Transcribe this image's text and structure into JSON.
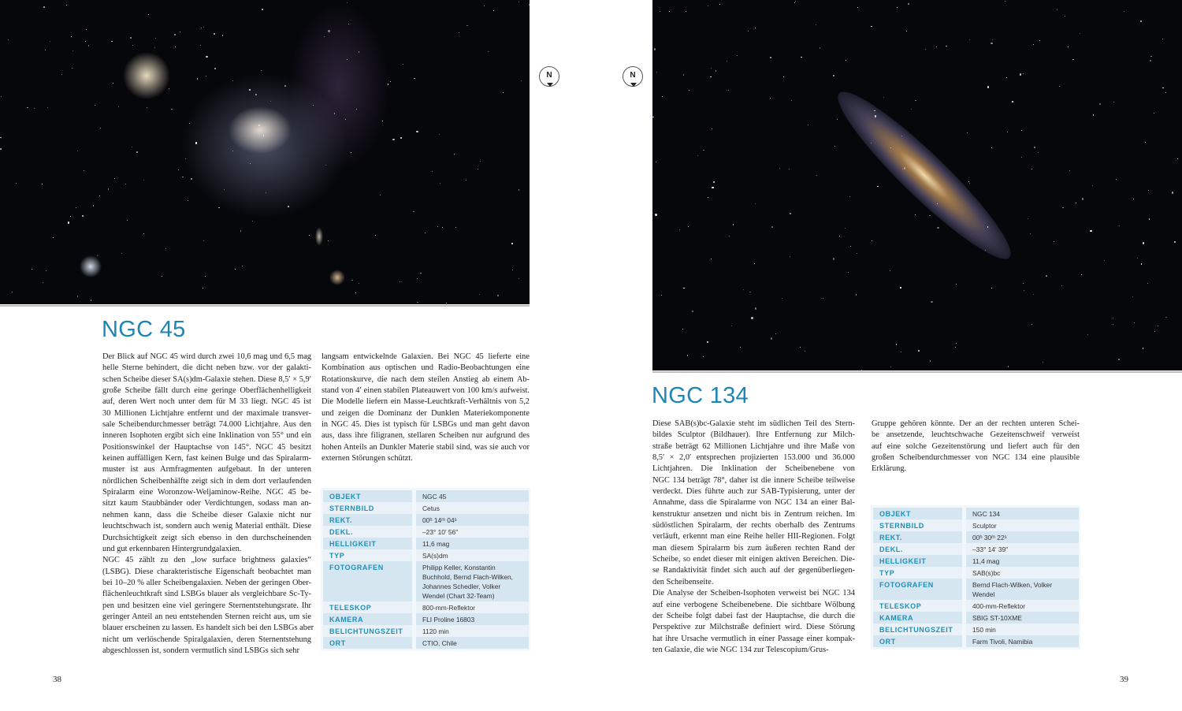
{
  "left_page": {
    "title": "NGC 45",
    "page_number": "38",
    "compass_label": "N",
    "column1": [
      [
        "Der Blick auf NGC 45 wird durch zwei 10,6 mag und 6,5 mag",
        "helle Sterne behindert, die dicht neben bzw. vor der galakti-",
        "schen Scheibe dieser SA(s)dm-Galaxie stehen. Diese 8,5′ × 5,9′",
        "große Scheibe fällt durch eine geringe Oberflächenhelligkeit",
        "auf, deren Wert noch unter dem für M 33 liegt. NGC 45 ist",
        "30 Millionen Lichtjahre entfernt und der maximale transver-",
        "sale Scheibendurchmesser beträgt 74.000 Lichtjahre. Aus den",
        "inneren Isophoten ergibt sich eine Inklination von 55° und ein",
        "Positionswinkel der Hauptachse von 145°. NGC 45 besitzt",
        "keinen auffälligen Kern, fast keinen Bulge und das Spiralarm-",
        "muster ist aus Armfragmenten aufgebaut. In der unteren",
        "nördlichen Scheibenhälfte zeigt sich in dem dort verlaufenden",
        "Spiralarm eine Woronzow-Weljaminow-Reihe. NGC 45 be-",
        "sitzt kaum Staubbänder oder Verdichtungen, sodass man an-",
        "nehmen kann, dass die Scheibe dieser Galaxie nicht nur",
        "leuchtschwach ist, sondern auch wenig Material enthält. Diese",
        "Durchsichtigkeit zeigt sich ebenso in den durchscheinenden",
        "und gut erkennbaren Hintergrundgalaxien."
      ],
      [
        "NGC 45 zählt zu den „low surface brightness galaxies“",
        "(LSBG). Diese charakteristische Eigenschaft beobachtet man",
        "bei 10–20 % aller Scheibengalaxien. Neben der geringen Ober-",
        "flächenleuchtkraft sind LSBGs blauer als vergleichbare Sc-Ty-",
        "pen und besitzen eine viel geringere Sternentstehungsrate. Ihr",
        "geringer Anteil an neu entstehenden Sternen reicht aus, um sie",
        "blauer erscheinen zu lassen. Es handelt sich bei den LSBGs aber",
        "nicht um verlöschende Spiralgalaxien, deren Sternentstehung",
        "abgeschlossen ist, sondern vermutlich sind LSBGs sich sehr"
      ]
    ],
    "column2": [
      [
        "langsam entwickelnde Galaxien. Bei NGC 45 lieferte eine",
        "Kombination aus optischen und Radio-Beobachtungen eine",
        "Rotationskurve, die nach dem steilen Anstieg ab einem Ab-",
        "stand von 4′ einen stabilen Plateauwert von 100 km/s aufweist.",
        "Die Modelle liefern ein Masse-Leuchtkraft-Verhältnis von 5,2",
        "und zeigen die Dominanz der Dunklen Materiekomponente",
        "in NGC 45. Dies ist typisch für LSBGs und man geht davon",
        "aus, dass ihre filigranen, stellaren Scheiben nur aufgrund des",
        "hohen Anteils an Dunkler Materie stabil sind, was sie auch vor",
        "externen Störungen schützt."
      ]
    ],
    "table": [
      {
        "label": "OBJEKT",
        "value": "NGC 45"
      },
      {
        "label": "STERNBILD",
        "value": "Cetus"
      },
      {
        "label": "REKT.",
        "value": "00ʰ 14ᵐ 04ˢ"
      },
      {
        "label": "DEKL.",
        "value": "–23° 10′ 56″"
      },
      {
        "label": "HELLIGKEIT",
        "value": "11,6 mag"
      },
      {
        "label": "TYP",
        "value": "SA(s)dm"
      },
      {
        "label": "FOTOGRAFEN",
        "value": "Philipp Keller, Konstantin Buchhold, Bernd Flach-Wilken, Johannes Schedler, Volker Wendel (Chart 32-Team)"
      },
      {
        "label": "TELESKOP",
        "value": "800-mm-Reflektor"
      },
      {
        "label": "KAMERA",
        "value": "FLI Proline 16803"
      },
      {
        "label": "BELICHTUNGSZEIT",
        "value": "1120 min"
      },
      {
        "label": "ORT",
        "value": "CTIO, Chile"
      }
    ]
  },
  "right_page": {
    "title": "NGC 134",
    "page_number": "39",
    "compass_label": "N",
    "column1": [
      [
        "Diese SAB(s)bc-Galaxie steht im südlichen Teil des Stern-",
        "bildes Sculptor (Bildhauer). Ihre Entfernung zur Milch-",
        "straße beträgt 62 Millionen Lichtjahre und ihre Maße von",
        "8,5′ × 2,0′ entsprechen projizierten 153.000 und 36.000",
        "Lichtjahren. Die Inklination der Scheibenebene von",
        "NGC 134 beträgt 78°, daher ist die innere Scheibe teilweise",
        "verdeckt. Dies führte auch zur SAB-Typisierung, unter der",
        "Annahme, dass die Spiralarme von NGC 134 an einer Bal-",
        "kenstruktur ansetzen und nicht bis in Zentrum reichen. Im",
        "südöstlichen Spiralarm, der rechts oberhalb des Zentrums",
        "verläuft, erkennt man eine Reihe heller HII-Regionen. Folgt",
        "man diesem Spiralarm bis zum äußeren rechten Rand der",
        "Scheibe, so endet dieser mit einigen aktiven Bereichen. Die-",
        "se Randaktivität findet sich auch auf der gegenüberliegen-",
        "den Scheibenseite."
      ],
      [
        "Die Analyse der Scheiben-Isophoten verweist bei NGC 134",
        "auf eine verbogene Scheibenebene. Die sichtbare Wölbung",
        "der Scheibe folgt dabei fast der Hauptachse, die durch die",
        "Perspektive zur Milchstraße definiert wird. Diese Störung",
        "hat ihre Ursache vermutlich in einer Passage einer kompak-",
        "ten Galaxie, die wie NGC 134 zur Telescopium/Grus-"
      ]
    ],
    "column2": [
      [
        "Gruppe gehören könnte. Der an der rechten unteren Schei-",
        "be ansetzende, leuchtschwache Gezeitenschweif verweist",
        "auf eine solche Gezeitenstörung und liefert auch für den",
        "großen Scheibendurchmesser von NGC 134 eine plausible",
        "Erklärung."
      ]
    ],
    "table": [
      {
        "label": "OBJEKT",
        "value": "NGC 134"
      },
      {
        "label": "STERNBILD",
        "value": "Sculptor"
      },
      {
        "label": "REKT.",
        "value": "00ʰ 30ᵐ 22ˢ"
      },
      {
        "label": "DEKL.",
        "value": "–33° 14′ 39″"
      },
      {
        "label": "HELLIGKEIT",
        "value": "11,4 mag"
      },
      {
        "label": "TYP",
        "value": "SAB(s)bc"
      },
      {
        "label": "FOTOGRAFEN",
        "value": "Bernd Flach-Wilken, Volker Wendel"
      },
      {
        "label": "TELESKOP",
        "value": "400-mm-Reflektor"
      },
      {
        "label": "KAMERA",
        "value": "SBIG ST-10XME"
      },
      {
        "label": "BELICHTUNGSZEIT",
        "value": "150 min"
      },
      {
        "label": "ORT",
        "value": "Farm Tivoli, Namibia"
      }
    ]
  }
}
